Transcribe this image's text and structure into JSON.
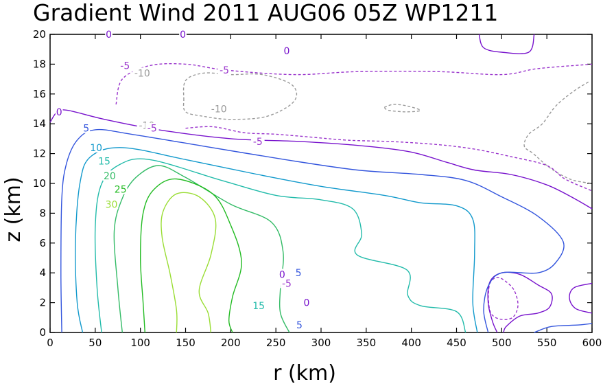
{
  "chart_data": {
    "type": "contour",
    "title": "Gradient Wind 2011 AUG06 05Z  WP1211",
    "xlabel": "r (km)",
    "ylabel": "z (km)",
    "xlim": [
      0,
      600
    ],
    "ylim": [
      0,
      20
    ],
    "x_ticks": [
      0,
      50,
      100,
      150,
      200,
      250,
      300,
      350,
      400,
      450,
      500,
      550,
      600
    ],
    "y_ticks": [
      0,
      2,
      4,
      6,
      8,
      10,
      12,
      14,
      16,
      18,
      20
    ],
    "x_tick_labels": [
      "0",
      "50",
      "100",
      "150",
      "200",
      "250",
      "300",
      "350",
      "400",
      "450",
      "500",
      "550",
      "600"
    ],
    "y_tick_labels": [
      "0",
      "2",
      "4",
      "6",
      "8",
      "10",
      "12",
      "14",
      "16",
      "18",
      "20"
    ],
    "grid": false,
    "contours": [
      {
        "id": "neg10-a",
        "level": -10,
        "color": "#999999",
        "dashed": true,
        "points": [
          [
            148,
            15.6
          ],
          [
            150,
            16.9
          ],
          [
            170,
            17.4
          ],
          [
            200,
            17.3
          ],
          [
            235,
            17.3
          ],
          [
            268,
            16.6
          ],
          [
            270,
            15.5
          ],
          [
            240,
            14.5
          ],
          [
            200,
            14.3
          ],
          [
            170,
            14.5
          ],
          [
            150,
            14.8
          ],
          [
            148,
            15.6
          ]
        ]
      },
      {
        "id": "neg10-b",
        "level": -10,
        "color": "#999999",
        "dashed": true,
        "points": [
          [
            370,
            15.1
          ],
          [
            380,
            15.3
          ],
          [
            395,
            15.2
          ],
          [
            410,
            14.9
          ],
          [
            395,
            14.8
          ],
          [
            375,
            14.9
          ],
          [
            370,
            15.1
          ]
        ]
      },
      {
        "id": "neg10-c",
        "level": -10,
        "color": "#999999",
        "dashed": true,
        "points": [
          [
            596,
            16.8
          ],
          [
            580,
            16.2
          ],
          [
            560,
            15.2
          ],
          [
            545,
            14.0
          ],
          [
            530,
            13.3
          ],
          [
            525,
            12.5
          ],
          [
            535,
            12.0
          ],
          [
            550,
            11.2
          ],
          [
            565,
            10.6
          ],
          [
            580,
            10.2
          ],
          [
            600,
            10.0
          ]
        ]
      },
      {
        "id": "neg5-a",
        "level": -5,
        "color": "#9933cc",
        "dashed": true,
        "points": [
          [
            73,
            15.3
          ],
          [
            80,
            17.0
          ],
          [
            110,
            17.9
          ],
          [
            150,
            18.0
          ],
          [
            195,
            17.6
          ],
          [
            270,
            17.3
          ],
          [
            340,
            17.5
          ],
          [
            430,
            17.5
          ],
          [
            500,
            17.3
          ],
          [
            540,
            17.7
          ],
          [
            600,
            18.0
          ]
        ]
      },
      {
        "id": "neg5-b",
        "level": -5,
        "color": "#9933cc",
        "dashed": true,
        "points": [
          [
            150,
            13.7
          ],
          [
            180,
            13.8
          ],
          [
            215,
            13.4
          ],
          [
            250,
            13.3
          ],
          [
            290,
            13.1
          ],
          [
            330,
            12.9
          ],
          [
            380,
            12.8
          ],
          [
            430,
            12.6
          ],
          [
            470,
            12.3
          ],
          [
            510,
            11.8
          ],
          [
            550,
            11.2
          ],
          [
            570,
            10.3
          ],
          [
            600,
            9.5
          ]
        ]
      },
      {
        "id": "neg5-c",
        "level": -5,
        "color": "#9933cc",
        "dashed": true,
        "points": [
          [
            485,
            2.3
          ],
          [
            487,
            3.3
          ],
          [
            495,
            3.7
          ],
          [
            505,
            3.4
          ],
          [
            514,
            2.8
          ],
          [
            518,
            1.8
          ],
          [
            512,
            1.0
          ],
          [
            498,
            0.9
          ],
          [
            488,
            1.3
          ],
          [
            485,
            2.3
          ]
        ]
      },
      {
        "id": "zero-a",
        "level": 0,
        "color": "#7711cc",
        "dashed": false,
        "points": [
          [
            0,
            14.1
          ],
          [
            8,
            14.8
          ],
          [
            20,
            14.9
          ],
          [
            60,
            14.3
          ],
          [
            120,
            13.6
          ],
          [
            200,
            13.0
          ],
          [
            280,
            12.8
          ],
          [
            350,
            12.5
          ],
          [
            400,
            12.1
          ],
          [
            440,
            11.4
          ],
          [
            470,
            10.9
          ],
          [
            510,
            10.6
          ],
          [
            550,
            9.9
          ],
          [
            580,
            9.0
          ],
          [
            600,
            8.3
          ]
        ]
      },
      {
        "id": "zero-b",
        "level": 0,
        "color": "#7711cc",
        "dashed": false,
        "points": [
          [
            495,
            0.0
          ],
          [
            490,
            0.7
          ],
          [
            485,
            2.0
          ],
          [
            487,
            3.4
          ],
          [
            500,
            4.0
          ],
          [
            520,
            3.9
          ],
          [
            540,
            3.2
          ],
          [
            555,
            2.6
          ],
          [
            553,
            1.7
          ],
          [
            540,
            1.3
          ],
          [
            520,
            1.1
          ],
          [
            505,
            0.4
          ],
          [
            502,
            0.0
          ]
        ]
      },
      {
        "id": "zero-c",
        "level": 0,
        "color": "#7711cc",
        "dashed": false,
        "points": [
          [
            600,
            3.3
          ],
          [
            580,
            3.0
          ],
          [
            575,
            2.3
          ],
          [
            582,
            1.6
          ],
          [
            600,
            1.3
          ]
        ]
      },
      {
        "id": "zero-d",
        "level": 0,
        "color": "#7711cc",
        "dashed": false,
        "points": [
          [
            475,
            20.0
          ],
          [
            480,
            19.1
          ],
          [
            500,
            18.8
          ],
          [
            530,
            18.8
          ],
          [
            536,
            20.0
          ]
        ]
      },
      {
        "id": "pos5-a",
        "level": 5,
        "color": "#3355dd",
        "dashed": false,
        "points": [
          [
            13,
            0.0
          ],
          [
            12,
            4.0
          ],
          [
            13,
            9.0
          ],
          [
            18,
            11.3
          ],
          [
            30,
            12.9
          ],
          [
            50,
            13.6
          ],
          [
            90,
            13.3
          ],
          [
            170,
            12.5
          ],
          [
            260,
            11.6
          ],
          [
            340,
            10.9
          ],
          [
            410,
            10.6
          ],
          [
            460,
            10.2
          ],
          [
            500,
            9.1
          ],
          [
            540,
            7.8
          ],
          [
            568,
            6.1
          ],
          [
            560,
            4.7
          ],
          [
            540,
            4.0
          ],
          [
            500,
            4.0
          ],
          [
            485,
            3.1
          ],
          [
            480,
            1.5
          ],
          [
            485,
            0.0
          ]
        ]
      },
      {
        "id": "pos5-b",
        "level": 5,
        "color": "#3355dd",
        "dashed": false,
        "points": [
          [
            536,
            0.0
          ],
          [
            555,
            0.4
          ],
          [
            585,
            0.5
          ],
          [
            600,
            0.6
          ]
        ]
      },
      {
        "id": "pos10",
        "level": 10,
        "color": "#1199cc",
        "dashed": false,
        "points": [
          [
            36,
            0.0
          ],
          [
            30,
            2.0
          ],
          [
            28,
            6.0
          ],
          [
            33,
            10.0
          ],
          [
            45,
            11.8
          ],
          [
            80,
            12.4
          ],
          [
            150,
            11.6
          ],
          [
            230,
            10.6
          ],
          [
            300,
            9.8
          ],
          [
            370,
            9.2
          ],
          [
            410,
            8.7
          ],
          [
            450,
            8.5
          ],
          [
            468,
            7.6
          ],
          [
            470,
            5.3
          ],
          [
            468,
            2.0
          ],
          [
            473,
            0.0
          ]
        ]
      },
      {
        "id": "pos15",
        "level": 15,
        "color": "#22bbaa",
        "dashed": false,
        "points": [
          [
            57,
            0.0
          ],
          [
            52,
            3.0
          ],
          [
            50,
            7.0
          ],
          [
            56,
            9.8
          ],
          [
            75,
            11.2
          ],
          [
            110,
            11.6
          ],
          [
            190,
            10.2
          ],
          [
            250,
            9.2
          ],
          [
            300,
            8.9
          ],
          [
            335,
            8.3
          ],
          [
            345,
            6.6
          ],
          [
            340,
            5.2
          ],
          [
            395,
            4.2
          ],
          [
            396,
            2.5
          ],
          [
            410,
            1.8
          ],
          [
            450,
            1.4
          ],
          [
            460,
            0.0
          ]
        ]
      },
      {
        "id": "pos20",
        "level": 20,
        "color": "#33bb66",
        "dashed": false,
        "points": [
          [
            80,
            0.0
          ],
          [
            75,
            3.0
          ],
          [
            71,
            6.8
          ],
          [
            80,
            9.0
          ],
          [
            95,
            10.4
          ],
          [
            120,
            11.2
          ],
          [
            150,
            10.4
          ],
          [
            200,
            8.6
          ],
          [
            245,
            7.4
          ],
          [
            258,
            5.4
          ],
          [
            255,
            3.0
          ],
          [
            255,
            1.3
          ],
          [
            265,
            0.0
          ]
        ]
      },
      {
        "id": "pos25",
        "level": 25,
        "color": "#22bb22",
        "dashed": false,
        "points": [
          [
            105,
            0.0
          ],
          [
            103,
            2.0
          ],
          [
            100,
            5.0
          ],
          [
            103,
            8.0
          ],
          [
            115,
            9.6
          ],
          [
            140,
            10.3
          ],
          [
            180,
            9.3
          ],
          [
            200,
            7.2
          ],
          [
            212,
            4.7
          ],
          [
            202,
            2.4
          ],
          [
            198,
            0.8
          ],
          [
            202,
            0.0
          ]
        ]
      },
      {
        "id": "pos30",
        "level": 30,
        "color": "#99dd33",
        "dashed": false,
        "points": [
          [
            140,
            0.0
          ],
          [
            140,
            1.5
          ],
          [
            133,
            3.9
          ],
          [
            124,
            6.4
          ],
          [
            125,
            8.1
          ],
          [
            140,
            9.3
          ],
          [
            165,
            9.1
          ],
          [
            183,
            7.6
          ],
          [
            178,
            5.2
          ],
          [
            165,
            2.8
          ],
          [
            175,
            1.3
          ],
          [
            178,
            0.0
          ]
        ]
      }
    ],
    "contour_labels": [
      {
        "text": "-5",
        "level": -5,
        "color": "#9933cc",
        "x": 83,
        "y": 17.9
      },
      {
        "text": "-10",
        "level": -10,
        "color": "#999999",
        "x": 102,
        "y": 17.4
      },
      {
        "text": "-5",
        "level": -5,
        "color": "#9933cc",
        "x": 193,
        "y": 17.6
      },
      {
        "text": "-10",
        "level": -10,
        "color": "#999999",
        "x": 187,
        "y": 15.0
      },
      {
        "text": "-10",
        "level": -10,
        "color": "#999999",
        "x": 107,
        "y": 13.9
      },
      {
        "text": "-5",
        "level": -5,
        "color": "#9933cc",
        "x": 113,
        "y": 13.7
      },
      {
        "text": "-5",
        "level": -5,
        "color": "#9933cc",
        "x": 230,
        "y": 12.8
      },
      {
        "text": "0",
        "level": 0,
        "color": "#7711cc",
        "x": 10,
        "y": 14.8
      },
      {
        "text": "0",
        "level": 0,
        "color": "#7711cc",
        "x": 65,
        "y": 20.0
      },
      {
        "text": "0",
        "level": 0,
        "color": "#7711cc",
        "x": 147,
        "y": 20.0
      },
      {
        "text": "0",
        "level": 0,
        "color": "#7711cc",
        "x": 262,
        "y": 18.9
      },
      {
        "text": "5",
        "level": 5,
        "color": "#3355dd",
        "x": 40,
        "y": 13.7
      },
      {
        "text": "10",
        "level": 10,
        "color": "#1199cc",
        "x": 51,
        "y": 12.4
      },
      {
        "text": "15",
        "level": 15,
        "color": "#22bbaa",
        "x": 60,
        "y": 11.5
      },
      {
        "text": "20",
        "level": 20,
        "color": "#33bb66",
        "x": 66,
        "y": 10.5
      },
      {
        "text": "25",
        "level": 25,
        "color": "#22bb22",
        "x": 78,
        "y": 9.6
      },
      {
        "text": "30",
        "level": 30,
        "color": "#99dd33",
        "x": 68,
        "y": 8.6
      },
      {
        "text": "15",
        "level": 15,
        "color": "#22bbaa",
        "x": 231,
        "y": 1.8
      },
      {
        "text": "0",
        "level": 0,
        "color": "#7711cc",
        "x": 257,
        "y": 3.9
      },
      {
        "text": "-5",
        "level": -5,
        "color": "#9933cc",
        "x": 262,
        "y": 3.3
      },
      {
        "text": "5",
        "level": 5,
        "color": "#3355dd",
        "x": 275,
        "y": 4.0
      },
      {
        "text": "0",
        "level": 0,
        "color": "#7711cc",
        "x": 284,
        "y": 2.0
      },
      {
        "text": "5",
        "level": 5,
        "color": "#3355dd",
        "x": 276,
        "y": 0.5
      }
    ]
  }
}
